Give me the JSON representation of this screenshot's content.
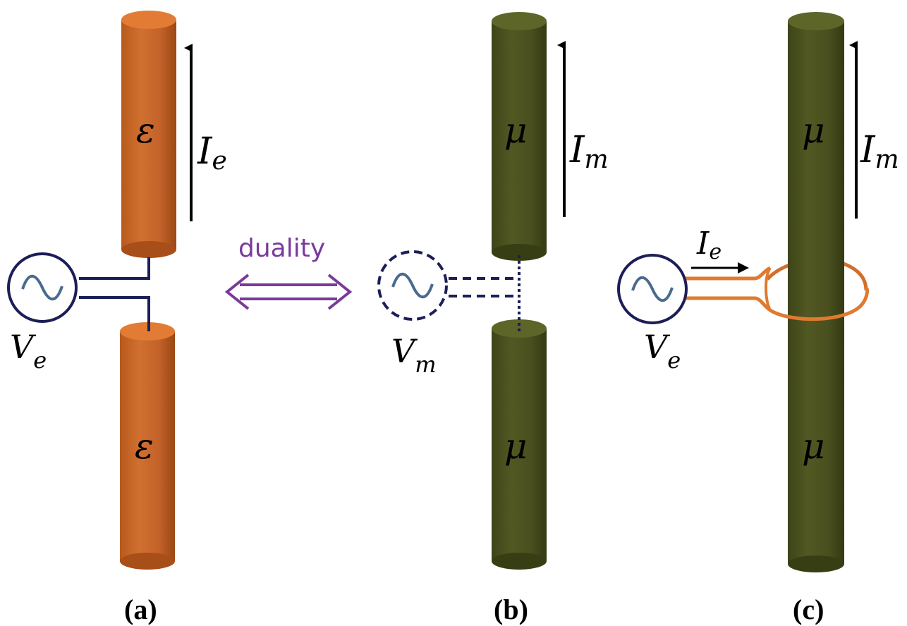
{
  "colors": {
    "copper": "#c86a28",
    "copper_top": "#e07a30",
    "olive": "#4c5220",
    "olive_top": "#5e6528",
    "navy": "#1c1e58",
    "wave": "#4a6a90",
    "purple": "#7a3a9a",
    "loop": "#e07a30"
  },
  "panel_a": {
    "label": "(a)",
    "upper_material": "ε",
    "lower_material": "ε",
    "current_symbol": "I",
    "current_sub": "e",
    "source_symbol": "V",
    "source_sub": "e",
    "source_icon": "ac-source-icon"
  },
  "duality": {
    "text": "duality",
    "arrow_icon": "double-arrow-icon"
  },
  "panel_b": {
    "label": "(b)",
    "upper_material": "μ",
    "lower_material": "μ",
    "current_symbol": "I",
    "current_sub": "m",
    "source_symbol": "V",
    "source_sub": "m",
    "source_icon": "ac-source-dashed-icon"
  },
  "panel_c": {
    "label": "(c)",
    "upper_material": "μ",
    "lower_material": "μ",
    "current_symbol": "I",
    "current_sub": "m",
    "loop_current_symbol": "I",
    "loop_current_sub": "e",
    "source_symbol": "V",
    "source_sub": "e",
    "source_icon": "ac-source-icon"
  }
}
